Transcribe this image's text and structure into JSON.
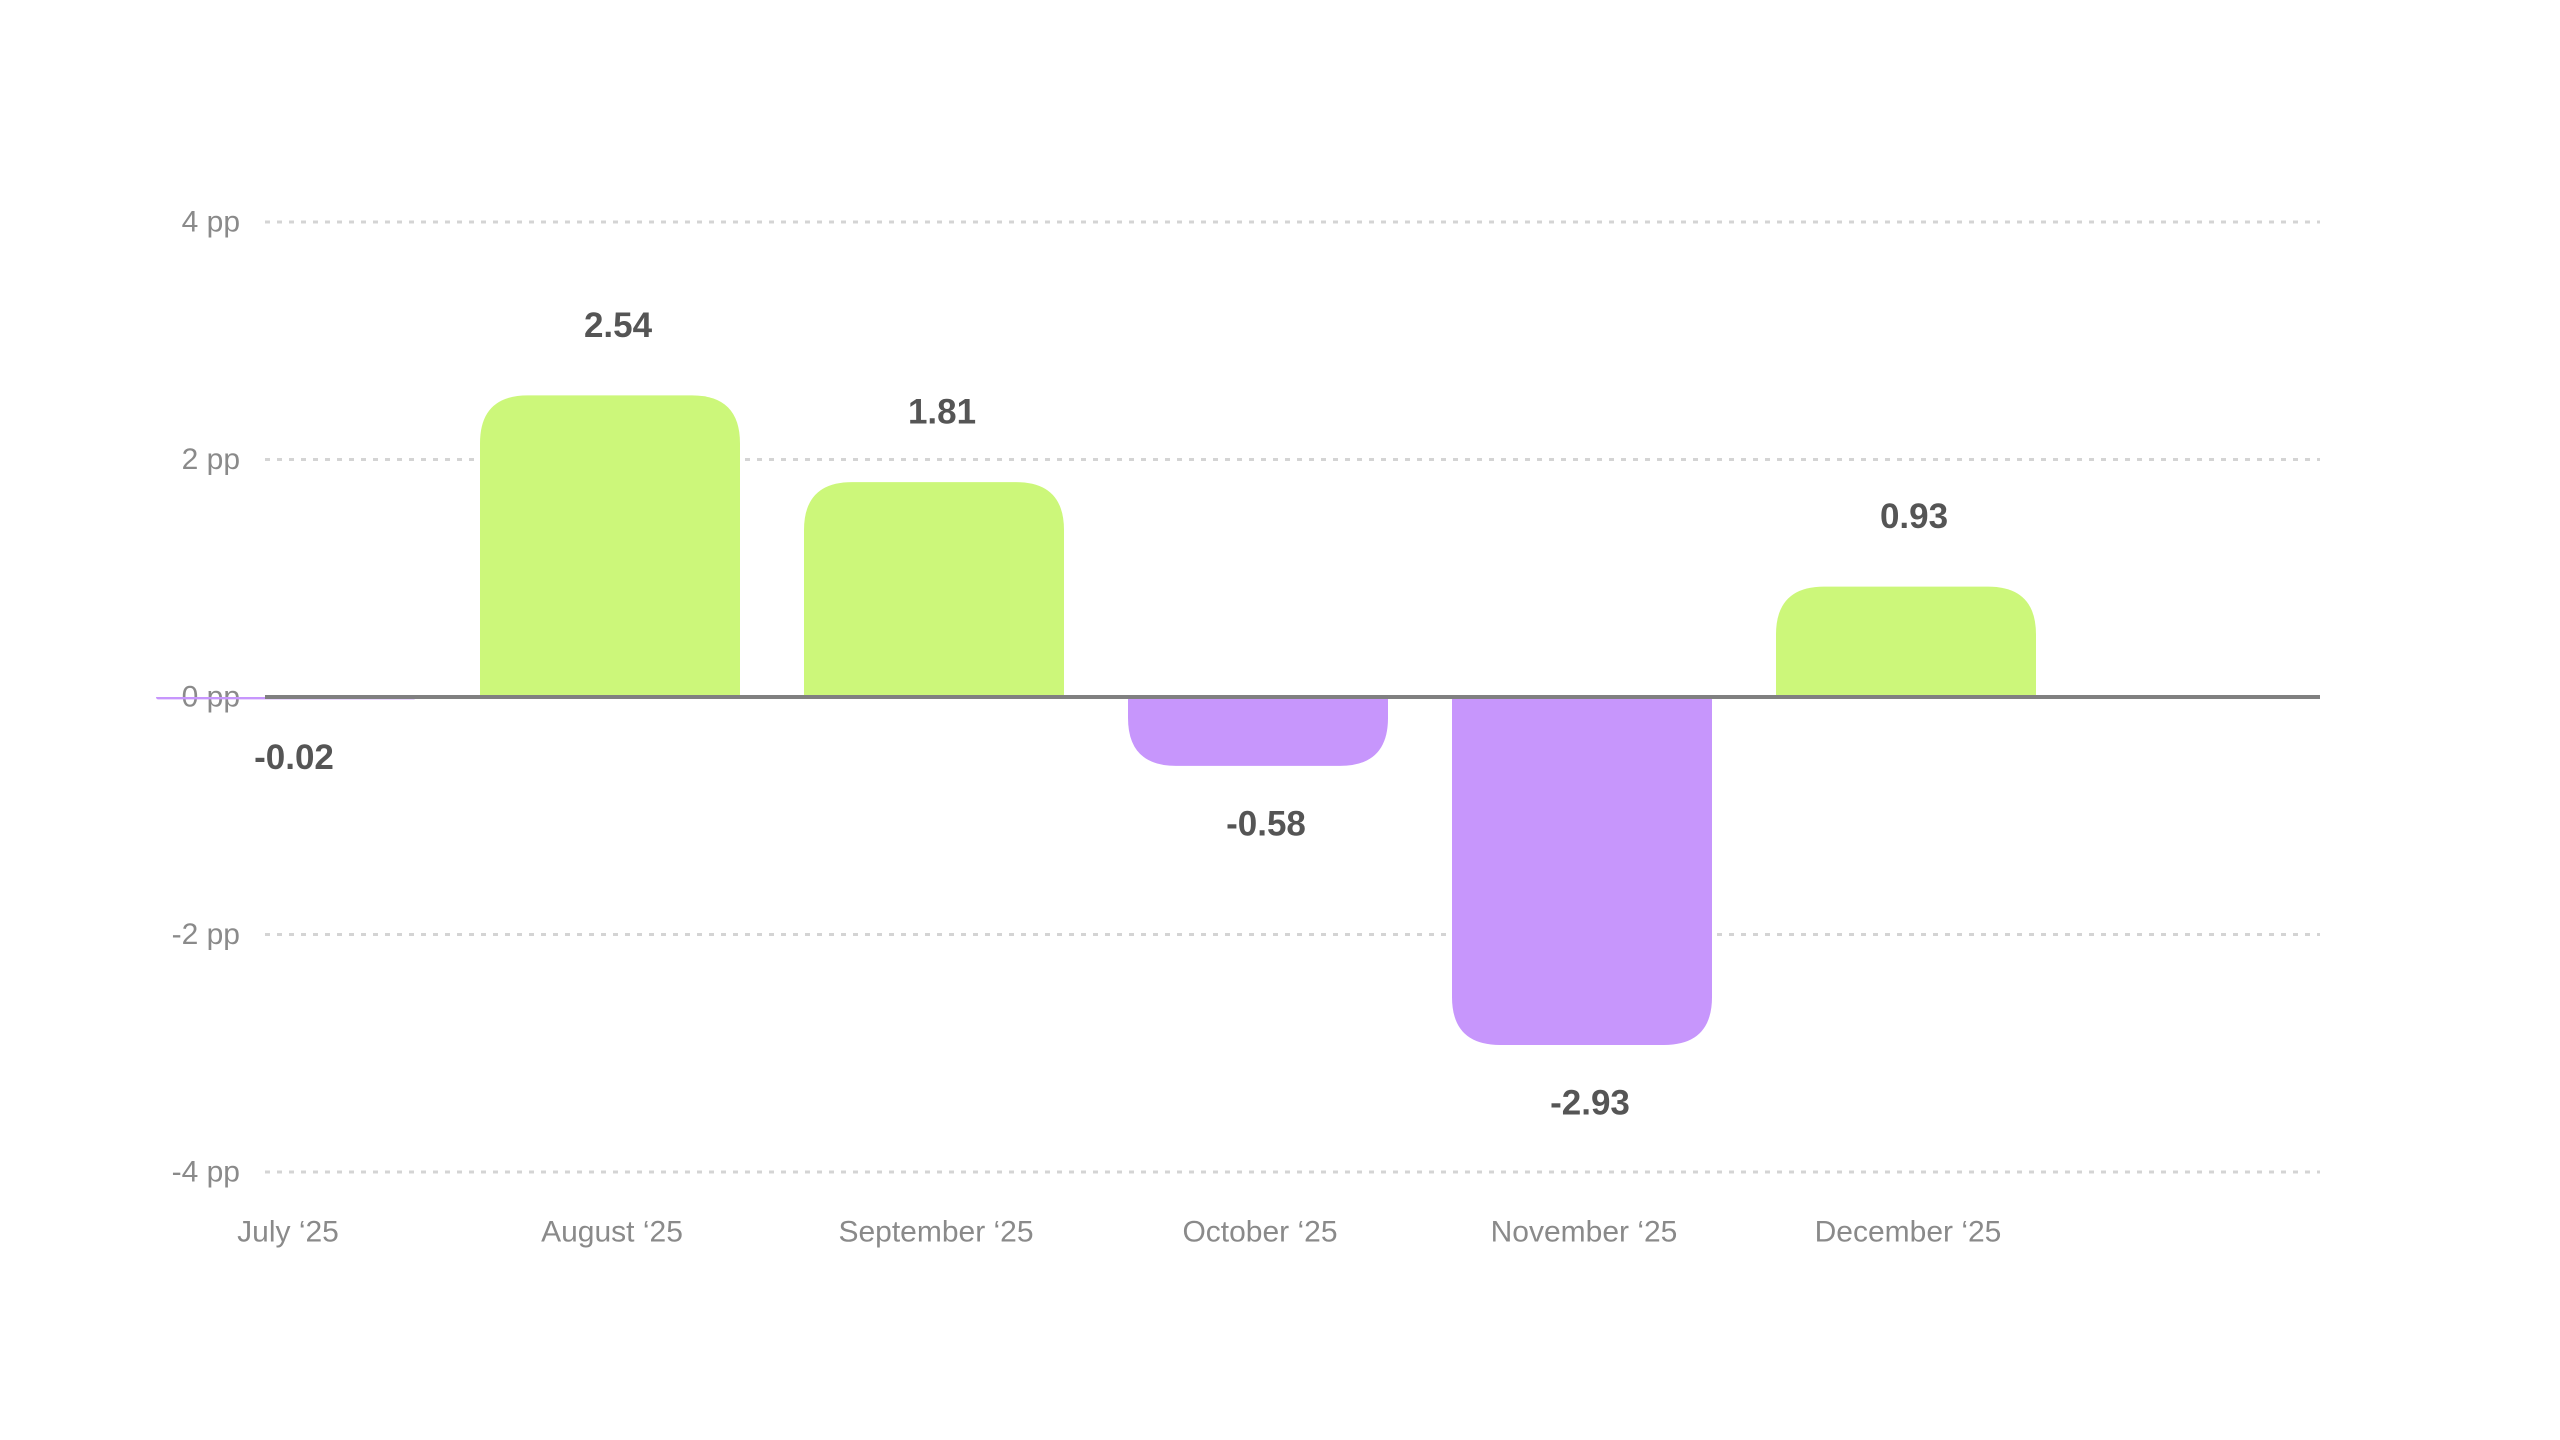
{
  "chart_data": {
    "type": "bar",
    "title": "",
    "xlabel": "",
    "ylabel": "",
    "unit": "pp",
    "categories": [
      "July ‘25",
      "August ‘25",
      "September ‘25",
      "October ‘25",
      "November ‘25",
      "December ‘25"
    ],
    "values": [
      -0.02,
      2.54,
      1.81,
      -0.58,
      -2.93,
      0.93
    ],
    "value_labels": [
      "-0.02",
      "2.54",
      "1.81",
      "-0.58",
      "-2.93",
      "0.93"
    ],
    "ylim": [
      -4,
      4
    ],
    "yticks": [
      4,
      2,
      0,
      -2,
      -4
    ],
    "ytick_labels": [
      "4 pp",
      "2 pp",
      "0 pp",
      "-2 pp",
      "-4 pp"
    ],
    "grid": true,
    "grid_style": "dotted",
    "colors": {
      "positive": "#ccf77a",
      "negative": "#c796fc"
    }
  }
}
